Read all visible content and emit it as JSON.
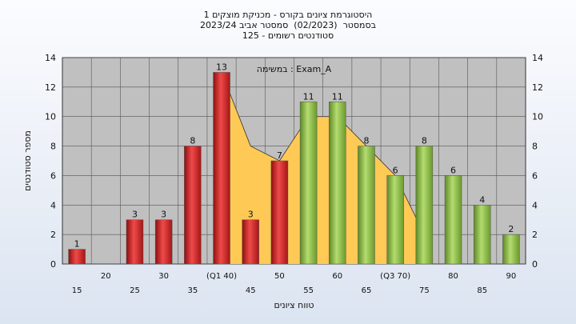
{
  "header": {
    "line1": "היסטוגרמת ציונים בקורס - מכניקת מוצקים 1",
    "line2": "בסמסטר  (02/2023)  סמסטר אביב 2023/24",
    "line3": "סטודנטים רשומים - 125"
  },
  "chart_data": {
    "type": "bar",
    "annotation": "במשימה : Exam_A",
    "xlabel": "טווח ציונים",
    "ylabel": "מספר סטודנטים",
    "ylim": [
      0,
      14
    ],
    "yticks": [
      0,
      2,
      4,
      6,
      8,
      10,
      12,
      14
    ],
    "grid": true,
    "categories": [
      "15",
      "20",
      "25",
      "30",
      "35",
      "(Q1 40)",
      "45",
      "50",
      "55",
      "60",
      "65",
      "(Q3 70)",
      "75",
      "80",
      "85",
      "90"
    ],
    "values": [
      1,
      0,
      3,
      3,
      8,
      13,
      3,
      7,
      11,
      11,
      8,
      6,
      8,
      6,
      4,
      2
    ],
    "bar_colors": [
      "red",
      "red",
      "red",
      "red",
      "red",
      "red",
      "red",
      "red",
      "green",
      "green",
      "green",
      "green",
      "green",
      "green",
      "green",
      "green"
    ],
    "curve": {
      "x": [
        "(Q1 40)",
        "45",
        "50",
        "55",
        "60",
        "65",
        "(Q3 70)",
        "75"
      ],
      "y": [
        13,
        8,
        7,
        10,
        10,
        8,
        6,
        2
      ]
    },
    "colors": {
      "red": "#e03030",
      "green": "#8fbf4a",
      "curve_fill": "#ffc955",
      "plot_bg": "#c0c0c0"
    }
  }
}
